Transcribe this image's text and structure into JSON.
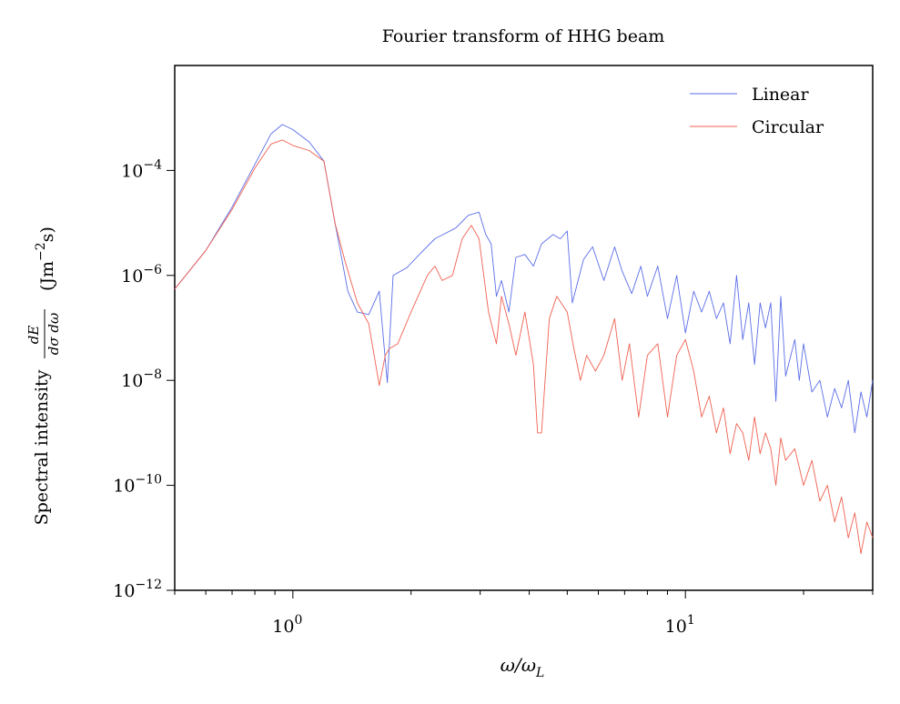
{
  "chart_data": {
    "type": "line",
    "title": "Fourier transform of HHG beam",
    "xlabel": "ω/ω",
    "xlabel_sub": "L",
    "ylabel": "Spectral intensity",
    "ylabel_frac_num": "dE",
    "ylabel_frac_den": "dσ dω",
    "ylabel_units_prefix": "(Jm",
    "ylabel_units_exp": "−2",
    "ylabel_units_suffix": "s)",
    "x_scale": "log",
    "y_scale": "log",
    "xlim": [
      0.5,
      30
    ],
    "ylim": [
      1e-12,
      0.01
    ],
    "x_ticks": [
      {
        "base": "10",
        "exp": "0",
        "value": 1
      },
      {
        "base": "10",
        "exp": "1",
        "value": 10
      }
    ],
    "y_ticks": [
      {
        "base": "10",
        "exp": "−12",
        "value": 1e-12
      },
      {
        "base": "10",
        "exp": "−10",
        "value": 1e-10
      },
      {
        "base": "10",
        "exp": "−8",
        "value": 1e-08
      },
      {
        "base": "10",
        "exp": "−6",
        "value": 1e-06
      },
      {
        "base": "10",
        "exp": "−4",
        "value": 0.0001
      }
    ],
    "legend_position": "top-right",
    "grid": false,
    "series": [
      {
        "name": "Linear",
        "color": "#5b6ee8",
        "points": [
          [
            0.5,
            5.5e-07
          ],
          [
            0.6,
            3e-06
          ],
          [
            0.7,
            2e-05
          ],
          [
            0.8,
            0.00013
          ],
          [
            0.88,
            0.0005
          ],
          [
            0.94,
            0.00075
          ],
          [
            1.0,
            0.0006
          ],
          [
            1.1,
            0.00035
          ],
          [
            1.2,
            0.00015
          ],
          [
            1.28,
            1e-05
          ],
          [
            1.32,
            3e-06
          ],
          [
            1.38,
            5e-07
          ],
          [
            1.46,
            2e-07
          ],
          [
            1.56,
            1.8e-07
          ],
          [
            1.66,
            5e-07
          ],
          [
            1.74,
            9e-09
          ],
          [
            1.8,
            1e-06
          ],
          [
            1.95,
            1.4e-06
          ],
          [
            2.1,
            2.5e-06
          ],
          [
            2.3,
            5e-06
          ],
          [
            2.6,
            8e-06
          ],
          [
            2.8,
            1.4e-05
          ],
          [
            2.98,
            1.6e-05
          ],
          [
            3.1,
            6e-06
          ],
          [
            3.2,
            4e-06
          ],
          [
            3.3,
            4e-07
          ],
          [
            3.4,
            8e-07
          ],
          [
            3.55,
            2e-07
          ],
          [
            3.7,
            2.2e-06
          ],
          [
            3.9,
            2.5e-06
          ],
          [
            4.1,
            1.5e-06
          ],
          [
            4.3,
            4e-06
          ],
          [
            4.6,
            6e-06
          ],
          [
            4.8,
            5e-06
          ],
          [
            5.0,
            7e-06
          ],
          [
            5.15,
            3e-07
          ],
          [
            5.5,
            2e-06
          ],
          [
            5.8,
            3.5e-06
          ],
          [
            6.2,
            8e-07
          ],
          [
            6.6,
            3.5e-06
          ],
          [
            6.9,
            1.2e-06
          ],
          [
            7.3,
            4.5e-07
          ],
          [
            7.7,
            1.5e-06
          ],
          [
            8.0,
            4e-07
          ],
          [
            8.5,
            1.5e-06
          ],
          [
            9.0,
            1.5e-07
          ],
          [
            9.5,
            1e-06
          ],
          [
            10.0,
            8e-08
          ],
          [
            10.5,
            5e-07
          ],
          [
            11.0,
            2e-07
          ],
          [
            11.5,
            5e-07
          ],
          [
            12.0,
            1.5e-07
          ],
          [
            12.5,
            3e-07
          ],
          [
            13.0,
            5e-08
          ],
          [
            13.5,
            1e-06
          ],
          [
            14.0,
            6e-08
          ],
          [
            14.5,
            3e-07
          ],
          [
            15.0,
            2e-08
          ],
          [
            15.5,
            3e-07
          ],
          [
            16.0,
            1e-07
          ],
          [
            16.5,
            3e-07
          ],
          [
            17.0,
            4e-09
          ],
          [
            17.5,
            4e-07
          ],
          [
            18.0,
            1.2e-08
          ],
          [
            19.0,
            6e-08
          ],
          [
            19.5,
            1e-08
          ],
          [
            20.0,
            5e-08
          ],
          [
            21.0,
            6e-09
          ],
          [
            22.0,
            1e-08
          ],
          [
            23.0,
            2e-09
          ],
          [
            24.0,
            7e-09
          ],
          [
            25.0,
            3e-09
          ],
          [
            26.0,
            1e-08
          ],
          [
            27.0,
            1e-09
          ],
          [
            28.0,
            6e-09
          ],
          [
            29.0,
            2e-09
          ],
          [
            30.0,
            1e-08
          ]
        ]
      },
      {
        "name": "Circular",
        "color": "#f06050",
        "points": [
          [
            0.5,
            5.5e-07
          ],
          [
            0.6,
            3e-06
          ],
          [
            0.7,
            1.8e-05
          ],
          [
            0.8,
            0.00011
          ],
          [
            0.88,
            0.00032
          ],
          [
            0.94,
            0.00038
          ],
          [
            1.0,
            0.0003
          ],
          [
            1.1,
            0.00024
          ],
          [
            1.2,
            0.00015
          ],
          [
            1.28,
            1e-05
          ],
          [
            1.36,
            1.8e-06
          ],
          [
            1.46,
            3e-07
          ],
          [
            1.56,
            1.2e-07
          ],
          [
            1.66,
            8e-09
          ],
          [
            1.72,
            3e-08
          ],
          [
            1.76,
            4e-08
          ],
          [
            1.85,
            5e-08
          ],
          [
            2.0,
            2e-07
          ],
          [
            2.2,
            1e-06
          ],
          [
            2.3,
            1.5e-06
          ],
          [
            2.4,
            8e-07
          ],
          [
            2.55,
            1e-06
          ],
          [
            2.7,
            5e-06
          ],
          [
            2.85,
            9e-06
          ],
          [
            2.98,
            5e-06
          ],
          [
            3.15,
            2e-07
          ],
          [
            3.3,
            5e-08
          ],
          [
            3.4,
            4e-07
          ],
          [
            3.55,
            1.2e-07
          ],
          [
            3.7,
            3e-08
          ],
          [
            3.9,
            2e-07
          ],
          [
            4.1,
            2e-08
          ],
          [
            4.2,
            1e-09
          ],
          [
            4.3,
            1e-09
          ],
          [
            4.5,
            1.5e-07
          ],
          [
            4.7,
            4e-07
          ],
          [
            5.0,
            2e-07
          ],
          [
            5.2,
            4e-08
          ],
          [
            5.4,
            1e-08
          ],
          [
            5.6,
            3e-08
          ],
          [
            5.9,
            1.5e-08
          ],
          [
            6.2,
            3e-08
          ],
          [
            6.6,
            1.5e-07
          ],
          [
            6.9,
            1e-08
          ],
          [
            7.2,
            5e-08
          ],
          [
            7.6,
            2e-09
          ],
          [
            8.0,
            3e-08
          ],
          [
            8.5,
            5e-08
          ],
          [
            9.0,
            2e-09
          ],
          [
            9.5,
            3e-08
          ],
          [
            10.0,
            6e-08
          ],
          [
            10.5,
            1.5e-08
          ],
          [
            11.0,
            2e-09
          ],
          [
            11.5,
            5e-09
          ],
          [
            12.0,
            1e-09
          ],
          [
            12.5,
            3e-09
          ],
          [
            13.0,
            4e-10
          ],
          [
            13.5,
            1.5e-09
          ],
          [
            14.0,
            1e-09
          ],
          [
            14.5,
            3e-10
          ],
          [
            15.0,
            2e-09
          ],
          [
            15.5,
            4e-10
          ],
          [
            16.0,
            1e-09
          ],
          [
            16.5,
            5e-10
          ],
          [
            17.0,
            1e-10
          ],
          [
            17.5,
            8e-10
          ],
          [
            18.0,
            3e-10
          ],
          [
            19.0,
            5e-10
          ],
          [
            20.0,
            1e-10
          ],
          [
            21.0,
            3e-10
          ],
          [
            22.0,
            5e-11
          ],
          [
            23.0,
            1e-10
          ],
          [
            24.0,
            2e-11
          ],
          [
            25.0,
            6e-11
          ],
          [
            26.0,
            1e-11
          ],
          [
            27.0,
            3e-11
          ],
          [
            28.0,
            5e-12
          ],
          [
            29.0,
            2e-11
          ],
          [
            30.0,
            1e-11
          ]
        ]
      }
    ]
  }
}
